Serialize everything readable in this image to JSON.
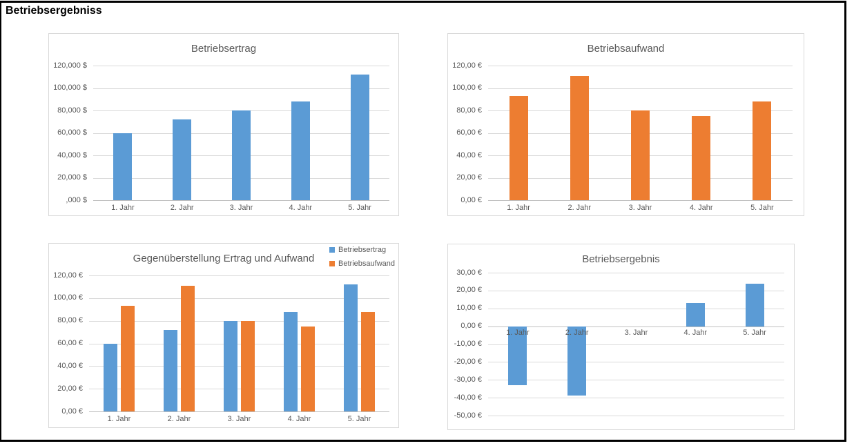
{
  "page": {
    "title": "Betriebsergebniss"
  },
  "colors": {
    "series_blue": "#5B9BD5",
    "series_orange": "#ED7D31",
    "gridline": "#D9D9D9",
    "axis_line": "#BFBFBF",
    "chart_border": "#D9D9D9",
    "chart_text": "#595959",
    "page_frame": "#000000"
  },
  "chart_data": [
    {
      "type": "bar",
      "title": "Betriebsertrag",
      "categories": [
        "1. Jahr",
        "2. Jahr",
        "3. Jahr",
        "4. Jahr",
        "5. Jahr"
      ],
      "series": [
        {
          "name": "Betriebsertrag",
          "color": "#5B9BD5",
          "values": [
            60000,
            72000,
            80000,
            88000,
            112000
          ]
        }
      ],
      "ylim": [
        0,
        120000
      ],
      "ytick_step": 20000,
      "ytick_labels": [
        "120,000 $",
        "100,000 $",
        "80,000 $",
        "60,000 $",
        "40,000 $",
        "20,000 $",
        ",000 $"
      ],
      "grid": true,
      "legend": null
    },
    {
      "type": "bar",
      "title": "Betriebsaufwand",
      "categories": [
        "1. Jahr",
        "2. Jahr",
        "3. Jahr",
        "4. Jahr",
        "5. Jahr"
      ],
      "series": [
        {
          "name": "Betriebsaufwand",
          "color": "#ED7D31",
          "values": [
            93,
            111,
            80,
            75,
            88
          ]
        }
      ],
      "ylim": [
        0,
        120
      ],
      "ytick_step": 20,
      "ytick_labels": [
        "120,00 €",
        "100,00 €",
        "80,00 €",
        "60,00 €",
        "40,00 €",
        "20,00 €",
        "0,00 €"
      ],
      "grid": true,
      "legend": null
    },
    {
      "type": "bar",
      "title": "Gegenüberstellung Ertrag und Aufwand",
      "categories": [
        "1. Jahr",
        "2. Jahr",
        "3. Jahr",
        "4. Jahr",
        "5. Jahr"
      ],
      "series": [
        {
          "name": "Betriebsertrag",
          "color": "#5B9BD5",
          "values": [
            60,
            72,
            80,
            88,
            112
          ]
        },
        {
          "name": "Betriebsaufwand",
          "color": "#ED7D31",
          "values": [
            93,
            111,
            80,
            75,
            88
          ]
        }
      ],
      "ylim": [
        0,
        120
      ],
      "ytick_step": 20,
      "ytick_labels": [
        "120,00 €",
        "100,00 €",
        "80,00 €",
        "60,00 €",
        "40,00 €",
        "20,00 €",
        "0,00 €"
      ],
      "grid": true,
      "legend": {
        "position": "top-right",
        "entries": [
          "Betriebsertrag",
          "Betriebsaufwand"
        ]
      }
    },
    {
      "type": "bar",
      "title": "Betriebsergebnis",
      "categories": [
        "1. Jahr",
        "2. Jahr",
        "3. Jahr",
        "4. Jahr",
        "5. Jahr"
      ],
      "series": [
        {
          "name": "Betriebsergebnis",
          "color": "#5B9BD5",
          "values": [
            -33,
            -39,
            0,
            13,
            24
          ]
        }
      ],
      "ylim": [
        -50,
        30
      ],
      "ytick_step": 10,
      "ytick_labels": [
        "30,00 €",
        "20,00 €",
        "10,00 €",
        "0,00 €",
        "-10,00 €",
        "-20,00 €",
        "-30,00 €",
        "-40,00 €",
        "-50,00 €"
      ],
      "grid": true,
      "legend": null
    }
  ]
}
